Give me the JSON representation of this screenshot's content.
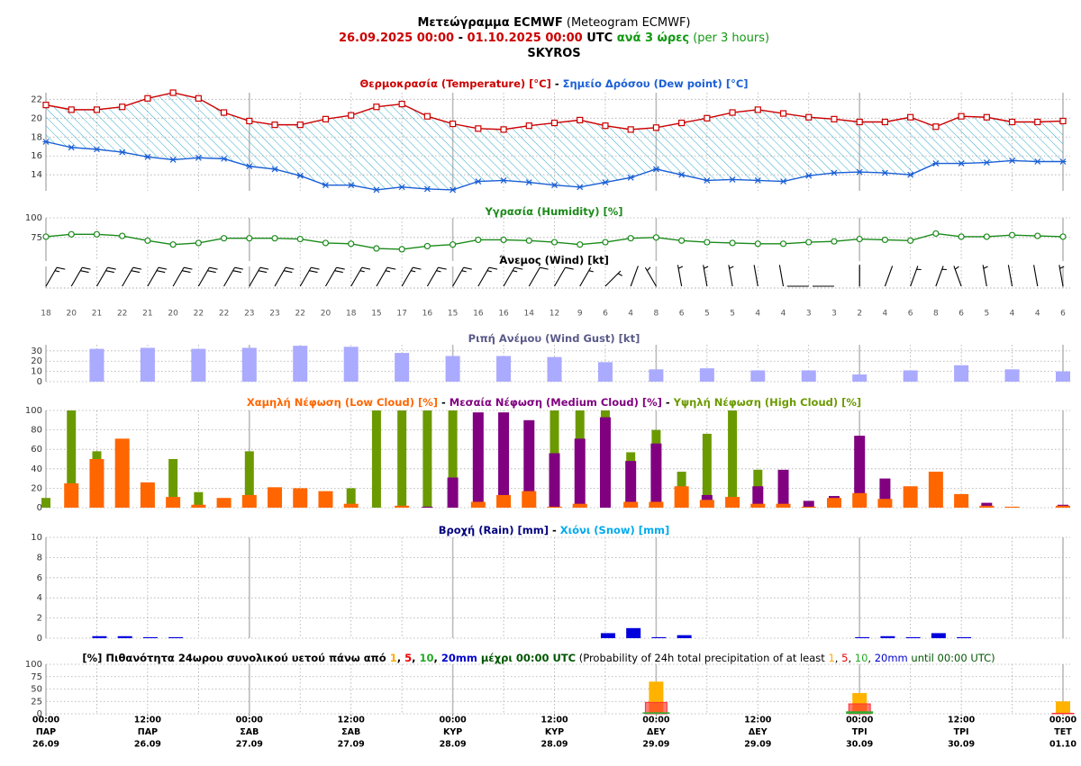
{
  "header": {
    "lines": [
      [
        {
          "text": "Μετεώγραμμα ECMWF",
          "color": "#000000",
          "bold": true
        },
        {
          "text": " (Meteogram ECMWF)",
          "color": "#000000",
          "bold": false
        }
      ],
      [
        {
          "text": "26.09.2025 00:00",
          "color": "#cc0000",
          "bold": true
        },
        {
          "text": " - ",
          "color": "#000000",
          "bold": true
        },
        {
          "text": "01.10.2025 00:00",
          "color": "#cc0000",
          "bold": true
        },
        {
          "text": " UTC",
          "color": "#000000",
          "bold": true
        },
        {
          "text": " ανά 3 ώρες",
          "color": "#119911",
          "bold": true
        },
        {
          "text": " (per 3 hours)",
          "color": "#119911",
          "bold": false
        }
      ],
      [
        {
          "text": "SKYROS",
          "color": "#000000",
          "bold": true
        }
      ]
    ]
  },
  "time": {
    "x": [
      0,
      3,
      6,
      9,
      12,
      15,
      18,
      21,
      24,
      27,
      30,
      33,
      36,
      39,
      42,
      45,
      48,
      51,
      54,
      57,
      60,
      63,
      66,
      69,
      72,
      75,
      78,
      81,
      84,
      87,
      90,
      93,
      96,
      99,
      102,
      105,
      108,
      111,
      114,
      117,
      120
    ],
    "xlim": [
      0,
      120
    ],
    "xticks": [
      {
        "value": 0,
        "label": "00:00",
        "day": "ΠΑΡ",
        "date": "26.09"
      },
      {
        "value": 12,
        "label": "12:00",
        "day": "ΠΑΡ",
        "date": "26.09"
      },
      {
        "value": 24,
        "label": "00:00",
        "day": "ΣΑΒ",
        "date": "27.09"
      },
      {
        "value": 36,
        "label": "12:00",
        "day": "ΣΑΒ",
        "date": "27.09"
      },
      {
        "value": 48,
        "label": "00:00",
        "day": "ΚΥΡ",
        "date": "28.09"
      },
      {
        "value": 60,
        "label": "12:00",
        "day": "ΚΥΡ",
        "date": "28.09"
      },
      {
        "value": 72,
        "label": "00:00",
        "day": "ΔΕΥ",
        "date": "29.09"
      },
      {
        "value": 84,
        "label": "12:00",
        "day": "ΔΕΥ",
        "date": "29.09"
      },
      {
        "value": 96,
        "label": "00:00",
        "day": "ΤΡΙ",
        "date": "30.09"
      },
      {
        "value": 108,
        "label": "12:00",
        "day": "ΤΡΙ",
        "date": "30.09"
      },
      {
        "value": 120,
        "label": "00:00",
        "day": "ΤΕΤ",
        "date": "01.10"
      }
    ]
  },
  "chart_data": [
    {
      "type": "line",
      "fill_between": true,
      "hatch_color": "#33aacc",
      "title_parts": [
        {
          "text": "Θερμοκρασία (Temperature) [°C]",
          "color": "#cc0000",
          "bold": true
        },
        {
          "text": " - ",
          "color": "#000000",
          "bold": true
        },
        {
          "text": "Σημείο Δρόσου (Dew point) [°C]",
          "color": "#1a5fd6",
          "bold": true
        }
      ],
      "ylim": [
        12.3,
        22.7
      ],
      "yticks": [
        14,
        16,
        18,
        20,
        22
      ],
      "grid": true,
      "series": [
        {
          "color": "#cc0000",
          "marker": "square",
          "values": [
            21.4,
            20.9,
            20.9,
            21.2,
            22.1,
            22.7,
            22.1,
            20.6,
            19.7,
            19.3,
            19.3,
            19.9,
            20.3,
            21.2,
            21.5,
            20.2,
            19.4,
            18.9,
            18.8,
            19.2,
            19.5,
            19.8,
            19.2,
            18.8,
            19.0,
            19.5,
            20.0,
            20.6,
            20.9,
            20.5,
            20.1,
            19.9,
            19.6,
            19.6,
            20.1,
            19.1,
            20.2,
            20.1,
            19.6,
            19.6,
            19.7
          ]
        },
        {
          "color": "#1a5fd6",
          "marker": "x",
          "values": [
            17.5,
            16.9,
            16.7,
            16.4,
            15.9,
            15.6,
            15.8,
            15.7,
            14.9,
            14.6,
            13.9,
            12.9,
            12.9,
            12.4,
            12.7,
            12.5,
            12.4,
            13.3,
            13.4,
            13.2,
            12.9,
            12.7,
            13.2,
            13.7,
            14.6,
            14.0,
            13.4,
            13.5,
            13.4,
            13.3,
            13.9,
            14.2,
            14.3,
            14.2,
            14.0,
            15.2,
            15.2,
            15.3,
            15.5,
            15.4,
            15.4
          ]
        }
      ]
    },
    {
      "type": "line",
      "title_parts": [
        {
          "text": "Υγρασία (Humidity) [%]",
          "color": "#1a8a1a",
          "bold": true
        }
      ],
      "ylim": [
        45,
        100
      ],
      "yticks": [
        75,
        100
      ],
      "grid": true,
      "series": [
        {
          "color": "#1a8a1a",
          "marker": "circle",
          "values": [
            76,
            79,
            79,
            77,
            71,
            66,
            68,
            74,
            74,
            74,
            73,
            68,
            67,
            61,
            60,
            64,
            66,
            72,
            72,
            71,
            69,
            66,
            69,
            74,
            75,
            71,
            69,
            68,
            67,
            67,
            69,
            70,
            73,
            72,
            71,
            80,
            76,
            76,
            78,
            77,
            76
          ]
        }
      ]
    },
    {
      "type": "barbs",
      "color": "#000000",
      "title_parts": [
        {
          "text": "Άνεμος (Wind) [kt]",
          "color": "#000000",
          "bold": true
        }
      ],
      "speed": [
        18,
        20,
        21,
        22,
        21,
        20,
        22,
        22,
        23,
        23,
        22,
        20,
        18,
        15,
        17,
        16,
        15,
        16,
        16,
        14,
        12,
        9,
        6,
        4,
        8,
        6,
        5,
        5,
        4,
        4,
        3,
        3,
        2,
        4,
        6,
        8,
        6,
        5,
        4,
        4,
        6
      ],
      "direction": [
        30,
        30,
        30,
        30,
        30,
        30,
        30,
        30,
        30,
        30,
        30,
        30,
        30,
        30,
        30,
        30,
        30,
        30,
        30,
        30,
        30,
        30,
        45,
        20,
        330,
        350,
        350,
        350,
        350,
        350,
        270,
        270,
        0,
        20,
        20,
        20,
        340,
        350,
        350,
        350,
        350
      ]
    },
    {
      "type": "bar",
      "color": "#aaaaff",
      "title_parts": [
        {
          "text": "Ριπή Ανέμου (Wind Gust) [kt]",
          "color": "#5a5a8a",
          "bold": true
        }
      ],
      "ylim": [
        0,
        36
      ],
      "yticks": [
        0,
        10,
        20,
        30
      ],
      "grid": true,
      "series": [
        {
          "color": "#aaaaff",
          "values": [
            null,
            null,
            32,
            null,
            33,
            null,
            32,
            null,
            33,
            null,
            35,
            null,
            34,
            null,
            28,
            null,
            25,
            null,
            25,
            null,
            24,
            null,
            19,
            null,
            12,
            null,
            13,
            null,
            11,
            null,
            11,
            null,
            7,
            null,
            11,
            null,
            16,
            null,
            12,
            null,
            10
          ]
        }
      ]
    },
    {
      "type": "bar",
      "title_parts": [
        {
          "text": "Χαμηλή Νέφωση (Low Cloud) [%]",
          "color": "#ff6600",
          "bold": true
        },
        {
          "text": " - ",
          "color": "#000000",
          "bold": true
        },
        {
          "text": "Μεσαία Νέφωση (Medium Cloud) [%]",
          "color": "#800080",
          "bold": true
        },
        {
          "text": " - ",
          "color": "#000000",
          "bold": true
        },
        {
          "text": "Υψηλή Νέφωση (High Cloud) [%]",
          "color": "#6b9a00",
          "bold": true
        }
      ],
      "ylim": [
        0,
        100
      ],
      "yticks": [
        0,
        20,
        40,
        60,
        80,
        100
      ],
      "grid": true,
      "series": [
        {
          "color": "#ff6600",
          "values": [
            0,
            25,
            50,
            71,
            26,
            11,
            3,
            10,
            13,
            21,
            20,
            17,
            4,
            0,
            2,
            0,
            0,
            6,
            13,
            17,
            1,
            4,
            0,
            6,
            6,
            22,
            8,
            11,
            4,
            4,
            1,
            10,
            15,
            9,
            22,
            37,
            14,
            2,
            1,
            0,
            2
          ]
        },
        {
          "color": "#800080",
          "values": [
            0,
            0,
            0,
            0,
            0,
            0,
            0,
            0,
            0,
            0,
            0,
            0,
            0,
            0,
            0,
            1,
            31,
            98,
            98,
            90,
            56,
            71,
            93,
            48,
            66,
            0,
            13,
            0,
            22,
            39,
            7,
            12,
            74,
            30,
            0,
            0,
            0,
            5,
            0,
            0,
            3
          ]
        },
        {
          "color": "#6b9a00",
          "values": [
            10,
            100,
            58,
            0,
            0,
            50,
            16,
            0,
            58,
            0,
            0,
            0,
            20,
            100,
            100,
            100,
            100,
            0,
            0,
            0,
            100,
            100,
            100,
            57,
            80,
            37,
            76,
            100,
            39,
            0,
            0,
            0,
            0,
            0,
            0,
            0,
            0,
            0,
            0,
            0,
            0
          ]
        }
      ]
    },
    {
      "type": "bar",
      "title_parts": [
        {
          "text": "Βροχή (Rain) [mm]",
          "color": "#000080",
          "bold": true
        },
        {
          "text": " - ",
          "color": "#000000",
          "bold": true
        },
        {
          "text": "Χιόνι (Snow) [mm]",
          "color": "#00aaee",
          "bold": true
        }
      ],
      "ylim": [
        0,
        10
      ],
      "yticks": [
        0,
        2,
        4,
        6,
        8,
        10
      ],
      "grid": true,
      "series": [
        {
          "color": "#0000dd",
          "values": [
            0,
            0,
            0.2,
            0.2,
            0.1,
            0.1,
            0,
            0,
            0,
            0,
            0,
            0,
            0,
            0,
            0,
            0,
            0,
            0,
            0,
            0,
            0,
            0,
            0.5,
            1.0,
            0.1,
            0.3,
            0,
            0,
            0,
            0,
            0,
            0,
            0.1,
            0.2,
            0.1,
            0.5,
            0.1,
            0,
            0,
            0,
            0
          ]
        },
        {
          "color": "#00aaee",
          "values": [
            0,
            0,
            0,
            0,
            0,
            0,
            0,
            0,
            0,
            0,
            0,
            0,
            0,
            0,
            0,
            0,
            0,
            0,
            0,
            0,
            0,
            0,
            0,
            0,
            0,
            0,
            0,
            0,
            0,
            0,
            0,
            0,
            0,
            0,
            0,
            0,
            0,
            0,
            0,
            0,
            0
          ]
        }
      ]
    },
    {
      "type": "bar",
      "title_parts": [
        {
          "text": "[%] Πιθανότητα 24ωρου συνολικού υετού πάνω από ",
          "color": "#000000",
          "bold": true
        },
        {
          "text": "1",
          "color": "#ffaa00",
          "bold": true
        },
        {
          "text": ", ",
          "color": "#000000",
          "bold": true
        },
        {
          "text": "5",
          "color": "#ee0000",
          "bold": true
        },
        {
          "text": ", ",
          "color": "#000000",
          "bold": true
        },
        {
          "text": "10",
          "color": "#22aa22",
          "bold": true
        },
        {
          "text": ", ",
          "color": "#000000",
          "bold": true
        },
        {
          "text": "20mm",
          "color": "#0000cc",
          "bold": true
        },
        {
          "text": " μέχρι 00:00 UTC",
          "color": "#005500",
          "bold": true
        },
        {
          "text": " (Probability of 24h total precipitation of at least ",
          "color": "#000000",
          "bold": false
        },
        {
          "text": "1",
          "color": "#ffaa00",
          "bold": false
        },
        {
          "text": ", ",
          "color": "#000000",
          "bold": false
        },
        {
          "text": "5",
          "color": "#ee0000",
          "bold": false
        },
        {
          "text": ", ",
          "color": "#000000",
          "bold": false
        },
        {
          "text": "10",
          "color": "#22aa22",
          "bold": false
        },
        {
          "text": ", ",
          "color": "#000000",
          "bold": false
        },
        {
          "text": "20mm",
          "color": "#0000cc",
          "bold": false
        },
        {
          "text": " until 00:00 UTC)",
          "color": "#005500",
          "bold": false
        }
      ],
      "x": [
        24,
        48,
        72,
        96,
        120
      ],
      "ylim": [
        0,
        100
      ],
      "yticks": [
        0,
        25,
        50,
        75,
        100
      ],
      "grid": true,
      "series": [
        {
          "color": "#ffb300",
          "values": [
            0,
            0,
            65,
            42,
            25
          ]
        },
        {
          "color": "#ff3333",
          "values": [
            0,
            0,
            23,
            20,
            1
          ]
        },
        {
          "color": "#33aa33",
          "values": [
            0,
            0,
            3,
            5,
            0
          ]
        },
        {
          "color": "#0000cc",
          "values": [
            0,
            0,
            0,
            0,
            0
          ]
        }
      ]
    }
  ]
}
